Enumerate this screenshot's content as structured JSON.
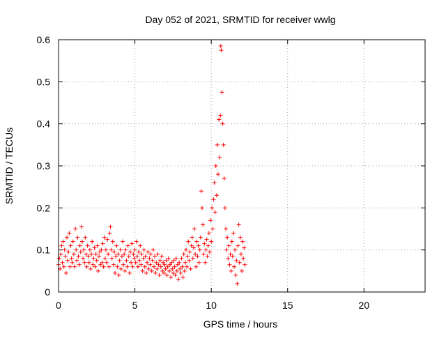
{
  "chart_data": {
    "type": "scatter",
    "title": "Day 052 of 2021, SRMTID for receiver wwlg",
    "xlabel": "GPS time / hours",
    "ylabel": "SRMTID / TECUs",
    "xlim": [
      0,
      24
    ],
    "ylim": [
      0,
      0.6
    ],
    "x_ticks": [
      0,
      5,
      10,
      15,
      20
    ],
    "x_tick_labels": [
      "0",
      "5",
      "10",
      "15",
      "20"
    ],
    "y_ticks": [
      0,
      0.1,
      0.2,
      0.3,
      0.4,
      0.5,
      0.6
    ],
    "y_tick_labels": [
      "0",
      "0.1",
      "0.2",
      "0.3",
      "0.4",
      "0.5",
      "0.6"
    ],
    "grid": true,
    "marker": "+",
    "marker_color": "#ff0000",
    "series": [
      {
        "name": "SRMTID",
        "points": [
          [
            0.0,
            0.065
          ],
          [
            0.05,
            0.08
          ],
          [
            0.1,
            0.055
          ],
          [
            0.15,
            0.09
          ],
          [
            0.2,
            0.11
          ],
          [
            0.25,
            0.07
          ],
          [
            0.3,
            0.12
          ],
          [
            0.35,
            0.06
          ],
          [
            0.4,
            0.1
          ],
          [
            0.45,
            0.085
          ],
          [
            0.5,
            0.045
          ],
          [
            0.55,
            0.13
          ],
          [
            0.6,
            0.075
          ],
          [
            0.65,
            0.095
          ],
          [
            0.7,
            0.14
          ],
          [
            0.75,
            0.06
          ],
          [
            0.8,
            0.11
          ],
          [
            0.85,
            0.08
          ],
          [
            0.9,
            0.07
          ],
          [
            0.95,
            0.12
          ],
          [
            1.0,
            0.09
          ],
          [
            1.05,
            0.06
          ],
          [
            1.1,
            0.15
          ],
          [
            1.15,
            0.1
          ],
          [
            1.2,
            0.075
          ],
          [
            1.25,
            0.13
          ],
          [
            1.3,
            0.085
          ],
          [
            1.35,
            0.065
          ],
          [
            1.4,
            0.11
          ],
          [
            1.45,
            0.095
          ],
          [
            1.5,
            0.155
          ],
          [
            1.55,
            0.12
          ],
          [
            1.6,
            0.08
          ],
          [
            1.65,
            0.1
          ],
          [
            1.7,
            0.07
          ],
          [
            1.75,
            0.13
          ],
          [
            1.8,
            0.09
          ],
          [
            1.85,
            0.06
          ],
          [
            1.9,
            0.11
          ],
          [
            1.95,
            0.085
          ],
          [
            2.0,
            0.07
          ],
          [
            2.05,
            0.1
          ],
          [
            2.1,
            0.055
          ],
          [
            2.15,
            0.09
          ],
          [
            2.2,
            0.12
          ],
          [
            2.25,
            0.065
          ],
          [
            2.3,
            0.08
          ],
          [
            2.35,
            0.105
          ],
          [
            2.4,
            0.06
          ],
          [
            2.45,
            0.09
          ],
          [
            2.5,
            0.075
          ],
          [
            2.55,
            0.11
          ],
          [
            2.6,
            0.05
          ],
          [
            2.65,
            0.085
          ],
          [
            2.7,
            0.095
          ],
          [
            2.75,
            0.065
          ],
          [
            2.8,
            0.1
          ],
          [
            2.85,
            0.07
          ],
          [
            2.9,
            0.115
          ],
          [
            2.95,
            0.06
          ],
          [
            3.0,
            0.13
          ],
          [
            3.05,
            0.08
          ],
          [
            3.1,
            0.1
          ],
          [
            3.15,
            0.07
          ],
          [
            3.2,
            0.125
          ],
          [
            3.25,
            0.09
          ],
          [
            3.3,
            0.06
          ],
          [
            3.35,
            0.14
          ],
          [
            3.4,
            0.155
          ],
          [
            3.45,
            0.1
          ],
          [
            3.5,
            0.08
          ],
          [
            3.55,
            0.12
          ],
          [
            3.6,
            0.065
          ],
          [
            3.65,
            0.095
          ],
          [
            3.7,
            0.045
          ],
          [
            3.75,
            0.085
          ],
          [
            3.8,
            0.11
          ],
          [
            3.85,
            0.06
          ],
          [
            3.9,
            0.09
          ],
          [
            3.95,
            0.04
          ],
          [
            4.0,
            0.075
          ],
          [
            4.05,
            0.1
          ],
          [
            4.1,
            0.055
          ],
          [
            4.15,
            0.085
          ],
          [
            4.2,
            0.12
          ],
          [
            4.25,
            0.065
          ],
          [
            4.3,
            0.09
          ],
          [
            4.35,
            0.05
          ],
          [
            4.4,
            0.1
          ],
          [
            4.45,
            0.075
          ],
          [
            4.5,
            0.06
          ],
          [
            4.55,
            0.11
          ],
          [
            4.6,
            0.085
          ],
          [
            4.65,
            0.045
          ],
          [
            4.7,
            0.095
          ],
          [
            4.75,
            0.07
          ],
          [
            4.8,
            0.115
          ],
          [
            4.85,
            0.06
          ],
          [
            4.9,
            0.09
          ],
          [
            4.95,
            0.08
          ],
          [
            5.0,
            0.1
          ],
          [
            5.05,
            0.07
          ],
          [
            5.1,
            0.12
          ],
          [
            5.15,
            0.085
          ],
          [
            5.2,
            0.06
          ],
          [
            5.25,
            0.095
          ],
          [
            5.3,
            0.075
          ],
          [
            5.35,
            0.11
          ],
          [
            5.4,
            0.065
          ],
          [
            5.45,
            0.09
          ],
          [
            5.5,
            0.05
          ],
          [
            5.55,
            0.08
          ],
          [
            5.6,
            0.1
          ],
          [
            5.65,
            0.06
          ],
          [
            5.7,
            0.085
          ],
          [
            5.75,
            0.045
          ],
          [
            5.8,
            0.07
          ],
          [
            5.85,
            0.095
          ],
          [
            5.9,
            0.055
          ],
          [
            5.95,
            0.08
          ],
          [
            6.0,
            0.065
          ],
          [
            6.05,
            0.09
          ],
          [
            6.1,
            0.05
          ],
          [
            6.15,
            0.075
          ],
          [
            6.2,
            0.1
          ],
          [
            6.25,
            0.06
          ],
          [
            6.3,
            0.085
          ],
          [
            6.35,
            0.045
          ],
          [
            6.4,
            0.07
          ],
          [
            6.45,
            0.055
          ],
          [
            6.5,
            0.09
          ],
          [
            6.55,
            0.065
          ],
          [
            6.6,
            0.04
          ],
          [
            6.65,
            0.075
          ],
          [
            6.7,
            0.06
          ],
          [
            6.75,
            0.085
          ],
          [
            6.8,
            0.05
          ],
          [
            6.85,
            0.07
          ],
          [
            6.9,
            0.045
          ],
          [
            6.95,
            0.065
          ],
          [
            7.0,
            0.055
          ],
          [
            7.05,
            0.075
          ],
          [
            7.1,
            0.04
          ],
          [
            7.15,
            0.06
          ],
          [
            7.2,
            0.08
          ],
          [
            7.25,
            0.05
          ],
          [
            7.3,
            0.065
          ],
          [
            7.35,
            0.035
          ],
          [
            7.4,
            0.07
          ],
          [
            7.45,
            0.055
          ],
          [
            7.5,
            0.045
          ],
          [
            7.55,
            0.075
          ],
          [
            7.6,
            0.06
          ],
          [
            7.65,
            0.04
          ],
          [
            7.7,
            0.08
          ],
          [
            7.75,
            0.05
          ],
          [
            7.8,
            0.065
          ],
          [
            7.85,
            0.03
          ],
          [
            7.9,
            0.07
          ],
          [
            7.95,
            0.055
          ],
          [
            8.0,
            0.045
          ],
          [
            8.05,
            0.08
          ],
          [
            8.1,
            0.06
          ],
          [
            8.15,
            0.035
          ],
          [
            8.2,
            0.09
          ],
          [
            8.25,
            0.05
          ],
          [
            8.3,
            0.07
          ],
          [
            8.35,
            0.1
          ],
          [
            8.4,
            0.06
          ],
          [
            8.45,
            0.085
          ],
          [
            8.5,
            0.12
          ],
          [
            8.55,
            0.075
          ],
          [
            8.6,
            0.095
          ],
          [
            8.65,
            0.055
          ],
          [
            8.7,
            0.11
          ],
          [
            8.75,
            0.13
          ],
          [
            8.8,
            0.08
          ],
          [
            8.85,
            0.105
          ],
          [
            8.9,
            0.15
          ],
          [
            8.95,
            0.09
          ],
          [
            9.0,
            0.06
          ],
          [
            9.05,
            0.12
          ],
          [
            9.1,
            0.085
          ],
          [
            9.15,
            0.11
          ],
          [
            9.2,
            0.07
          ],
          [
            9.25,
            0.1
          ],
          [
            9.3,
            0.13
          ],
          [
            9.35,
            0.24
          ],
          [
            9.4,
            0.2
          ],
          [
            9.45,
            0.16
          ],
          [
            9.5,
            0.09
          ],
          [
            9.55,
            0.115
          ],
          [
            9.6,
            0.07
          ],
          [
            9.65,
            0.1
          ],
          [
            9.7,
            0.125
          ],
          [
            9.75,
            0.085
          ],
          [
            9.8,
            0.11
          ],
          [
            9.85,
            0.14
          ],
          [
            9.9,
            0.095
          ],
          [
            9.95,
            0.17
          ],
          [
            10.0,
            0.12
          ],
          [
            10.05,
            0.2
          ],
          [
            10.1,
            0.15
          ],
          [
            10.15,
            0.22
          ],
          [
            10.2,
            0.26
          ],
          [
            10.25,
            0.19
          ],
          [
            10.3,
            0.3
          ],
          [
            10.35,
            0.23
          ],
          [
            10.4,
            0.35
          ],
          [
            10.45,
            0.28
          ],
          [
            10.5,
            0.41
          ],
          [
            10.55,
            0.32
          ],
          [
            10.6,
            0.42
          ],
          [
            10.62,
            0.585
          ],
          [
            10.65,
            0.575
          ],
          [
            10.7,
            0.475
          ],
          [
            10.75,
            0.4
          ],
          [
            10.8,
            0.35
          ],
          [
            10.85,
            0.27
          ],
          [
            10.9,
            0.2
          ],
          [
            10.95,
            0.15
          ],
          [
            11.0,
            0.1
          ],
          [
            11.05,
            0.13
          ],
          [
            11.1,
            0.08
          ],
          [
            11.15,
            0.11
          ],
          [
            11.2,
            0.065
          ],
          [
            11.25,
            0.09
          ],
          [
            11.3,
            0.05
          ],
          [
            11.35,
            0.12
          ],
          [
            11.4,
            0.085
          ],
          [
            11.45,
            0.14
          ],
          [
            11.5,
            0.06
          ],
          [
            11.55,
            0.1
          ],
          [
            11.6,
            0.04
          ],
          [
            11.65,
            0.075
          ],
          [
            11.7,
            0.02
          ],
          [
            11.75,
            0.11
          ],
          [
            11.8,
            0.16
          ],
          [
            11.85,
            0.07
          ],
          [
            11.9,
            0.13
          ],
          [
            11.95,
            0.09
          ],
          [
            12.0,
            0.05
          ],
          [
            12.05,
            0.12
          ],
          [
            12.1,
            0.08
          ],
          [
            12.15,
            0.105
          ],
          [
            12.2,
            0.065
          ]
        ]
      }
    ]
  }
}
